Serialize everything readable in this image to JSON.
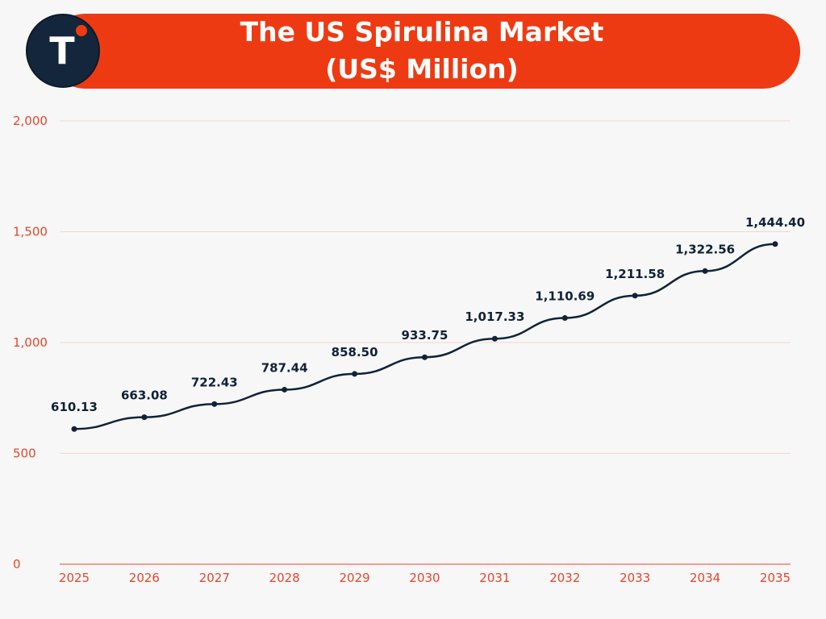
{
  "header": {
    "title_line1": "The US Spirulina Market",
    "title_line2": "(US$ Million)",
    "logo_letter": "T"
  },
  "colors": {
    "accent": "#ee3a12",
    "navy": "#13263b",
    "line": "#0f2238",
    "tick": "#e8452a",
    "grid": "#f4d6cf"
  },
  "chart_data": {
    "type": "line",
    "title": "The US Spirulina Market (US$ Million)",
    "x": [
      "2025",
      "2026",
      "2027",
      "2028",
      "2029",
      "2030",
      "2031",
      "2032",
      "2033",
      "2034",
      "2035"
    ],
    "series": [
      {
        "values": [
          610.13,
          663.08,
          722.43,
          787.44,
          858.5,
          933.75,
          1017.33,
          1110.69,
          1211.58,
          1322.56,
          1444.4
        ],
        "labels": [
          "610.13",
          "663.08",
          "722.43",
          "787.44",
          "858.50",
          "933.75",
          "1,017.33",
          "1,110.69",
          "1,211.58",
          "1,322.56",
          "1,444.40"
        ]
      }
    ],
    "yticks": [
      0,
      500,
      1000,
      1500,
      2000
    ],
    "ytick_labels": [
      "0",
      "500",
      "1,000",
      "1,500",
      "2,000"
    ],
    "ylim": [
      0,
      2000
    ],
    "grid": true,
    "legend": "none"
  }
}
